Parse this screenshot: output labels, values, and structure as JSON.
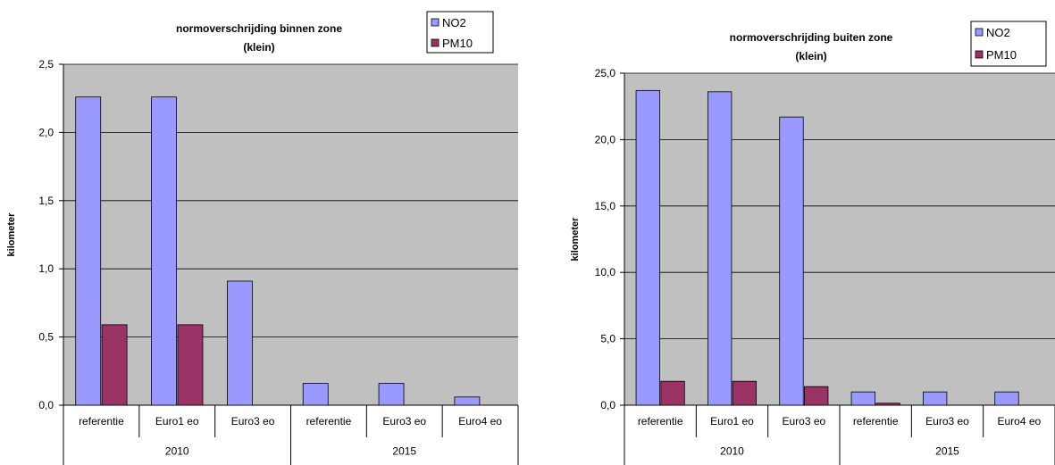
{
  "chart_data": [
    {
      "type": "bar",
      "title": "normoverschrijding binnen zone",
      "subtitle": "(klein)",
      "ylabel": "kilometer",
      "ylim": [
        0,
        2.5
      ],
      "yticks": [
        "0,0",
        "0,5",
        "1,0",
        "1,5",
        "2,0",
        "2,5"
      ],
      "categories": [
        "referentie",
        "Euro1 eo",
        "Euro3 eo",
        "referentie",
        "Euro3 eo",
        "Euro4 eo"
      ],
      "groups": [
        {
          "label": "2010",
          "count": 3
        },
        {
          "label": "2015",
          "count": 3
        }
      ],
      "series": [
        {
          "name": "NO2",
          "color": "#9999ff",
          "values": [
            2.26,
            2.26,
            0.91,
            0.16,
            0.16,
            0.06
          ]
        },
        {
          "name": "PM10",
          "color": "#993366",
          "values": [
            0.59,
            0.59,
            0,
            0,
            0,
            0
          ]
        }
      ],
      "plot_bg": "#c0c0c0",
      "grid": true,
      "legend": "top-right"
    },
    {
      "type": "bar",
      "title": "normoverschrijding buiten zone",
      "subtitle": "(klein)",
      "ylabel": "kilometer",
      "ylim": [
        0,
        25
      ],
      "yticks": [
        "0,0",
        "5,0",
        "10,0",
        "15,0",
        "20,0",
        "25,0"
      ],
      "categories": [
        "referentie",
        "Euro1 eo",
        "Euro3 eo",
        "referentie",
        "Euro3 eo",
        "Euro4 eo"
      ],
      "groups": [
        {
          "label": "2010",
          "count": 3
        },
        {
          "label": "2015",
          "count": 3
        }
      ],
      "series": [
        {
          "name": "NO2",
          "color": "#9999ff",
          "values": [
            23.7,
            23.6,
            21.7,
            1.0,
            1.0,
            1.0
          ]
        },
        {
          "name": "PM10",
          "color": "#993366",
          "values": [
            1.8,
            1.8,
            1.4,
            0.15,
            0,
            0
          ]
        }
      ],
      "plot_bg": "#c0c0c0",
      "grid": true,
      "legend": "top-right"
    }
  ]
}
